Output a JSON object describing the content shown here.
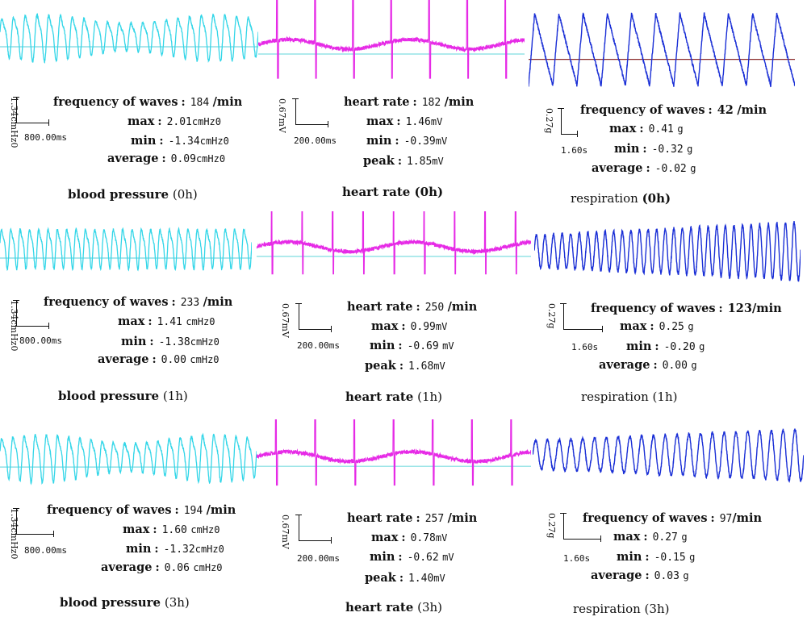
{
  "colors": {
    "bp": "#33d6e8",
    "hr": "#e62ae6",
    "resp": "#1a2fd6",
    "baseline_bp": "#77d8e0",
    "baseline_hr": "#7fdde0",
    "baseline_resp": "#8b2b2b"
  },
  "panels": [
    {
      "id": "bp0",
      "kind": "bp",
      "caption_bold": "blood pressure",
      "caption_time": "(0h)",
      "scale_v": "1.34cmHz0",
      "scale_h": "800.00ms",
      "chart_data": {
        "type": "line",
        "title": "blood pressure (0h)",
        "cycles": 22,
        "amplitude": 0.85,
        "trend": "modulated"
      },
      "stats": [
        {
          "label": "frequency of waves",
          "value": "184",
          "unit": "/min"
        },
        {
          "label": "max",
          "value": "2.01",
          "unit": "cmHz0"
        },
        {
          "label": "min",
          "value": "-1.34",
          "unit": "cmHz0"
        },
        {
          "label": "average",
          "value": "0.09",
          "unit": "cmHz0"
        }
      ]
    },
    {
      "id": "hr0",
      "kind": "hr",
      "caption_bold": "heart rate (0h)",
      "caption_time": "",
      "scale_v": "0.67mV",
      "scale_h": "200.00ms",
      "chart_data": {
        "type": "line",
        "title": "heart rate (0h)",
        "beats": 7,
        "trend": "wavy"
      },
      "stats": [
        {
          "label": "heart rate",
          "value": "182",
          "unit": "/min"
        },
        {
          "label": "max",
          "value": "1.46",
          "unit": "mV"
        },
        {
          "label": "min",
          "value": "-0.39",
          "unit": "mV"
        },
        {
          "label": "peak",
          "value": "1.85",
          "unit": "mV"
        }
      ]
    },
    {
      "id": "resp0",
      "kind": "resp",
      "caption_bold": "respiration",
      "caption_time": "(0h)",
      "scale_v": "0.27g",
      "scale_h": "1.60s",
      "chart_data": {
        "type": "line",
        "title": "respiration (0h)",
        "cycles": 11,
        "trend": "sawtooth"
      },
      "stats": [
        {
          "label": "frequency of waves",
          "value": "42",
          "unit": "/min"
        },
        {
          "label": "max",
          "value": "0.41",
          "unit": "g"
        },
        {
          "label": "min",
          "value": "-0.32",
          "unit": "g"
        },
        {
          "label": "average",
          "value": "-0.02",
          "unit": "g"
        }
      ]
    },
    {
      "id": "bp1",
      "kind": "bp",
      "caption_bold": "blood pressure",
      "caption_time": "(1h)",
      "scale_v": "1.34cmHz0",
      "scale_h": "800.00ms",
      "chart_data": {
        "type": "line",
        "title": "blood pressure (1h)",
        "cycles": 27,
        "amplitude": 0.9,
        "trend": "flat"
      },
      "stats": [
        {
          "label": "frequency of waves",
          "value": "233",
          "unit": "/min"
        },
        {
          "label": "max",
          "value": "1.41",
          "unit": "cmHz0"
        },
        {
          "label": "min",
          "value": "-1.38",
          "unit": "cmHz0"
        },
        {
          "label": "average",
          "value": "0.00",
          "unit": "cmHz0"
        }
      ]
    },
    {
      "id": "hr1",
      "kind": "hr",
      "caption_bold": "heart rate",
      "caption_time": "(1h)",
      "scale_v": "0.67mV",
      "scale_h": "200.00ms",
      "chart_data": {
        "type": "line",
        "title": "heart rate (1h)",
        "beats": 9,
        "trend": "wavy"
      },
      "stats": [
        {
          "label": "heart rate",
          "value": "250",
          "unit": "/min"
        },
        {
          "label": "max",
          "value": "0.99",
          "unit": "mV"
        },
        {
          "label": "min",
          "value": "-0.69",
          "unit": "mV"
        },
        {
          "label": "peak",
          "value": "1.68",
          "unit": "mV"
        }
      ]
    },
    {
      "id": "resp1",
      "kind": "resp",
      "caption_bold": "",
      "caption_time": "respiration (1h)",
      "scale_v": "0.27g",
      "scale_h": "1.60s",
      "chart_data": {
        "type": "line",
        "title": "respiration (1h)",
        "cycles": 31,
        "trend": "growing"
      },
      "stats": [
        {
          "label": "frequency of waves",
          "value": "123",
          "unit": "/min"
        },
        {
          "label": "max",
          "value": "0.25",
          "unit": "g"
        },
        {
          "label": "min",
          "value": "-0.20",
          "unit": "g"
        },
        {
          "label": "average",
          "value": "0.00",
          "unit": "g"
        }
      ]
    },
    {
      "id": "bp3",
      "kind": "bp",
      "caption_bold": "blood pressure",
      "caption_time": "(3h)",
      "scale_v": "1.34cmHz0",
      "scale_h": "800.00ms",
      "chart_data": {
        "type": "line",
        "title": "blood pressure (3h)",
        "cycles": 23,
        "amplitude": 0.85,
        "trend": "modulated"
      },
      "stats": [
        {
          "label": "frequency of waves",
          "value": "194",
          "unit": "/min"
        },
        {
          "label": "max",
          "value": "1.60",
          "unit": "cmHz0"
        },
        {
          "label": "min",
          "value": "-1.32",
          "unit": "cmHz0"
        },
        {
          "label": "average",
          "value": "0.06",
          "unit": "cmHz0"
        }
      ]
    },
    {
      "id": "hr3",
      "kind": "hr",
      "caption_bold": "heart rate",
      "caption_time": "(3h)",
      "scale_v": "0.67mV",
      "scale_h": "200.00ms",
      "chart_data": {
        "type": "line",
        "title": "heart rate (3h)",
        "beats": 7,
        "trend": "wavy"
      },
      "stats": [
        {
          "label": "heart rate",
          "value": "257",
          "unit": "/min"
        },
        {
          "label": "max",
          "value": "0.78",
          "unit": "mV"
        },
        {
          "label": "min",
          "value": "-0.62",
          "unit": "mV"
        },
        {
          "label": "peak",
          "value": "1.40",
          "unit": "mV"
        }
      ]
    },
    {
      "id": "resp3",
      "kind": "resp",
      "caption_bold": "",
      "caption_time": "respiration (3h)",
      "scale_v": "0.27g",
      "scale_h": "1.60s",
      "chart_data": {
        "type": "line",
        "title": "respiration (3h)",
        "cycles": 23,
        "trend": "growing"
      },
      "stats": [
        {
          "label": "frequency of waves",
          "value": "97",
          "unit": "/min"
        },
        {
          "label": "max",
          "value": "0.27",
          "unit": "g"
        },
        {
          "label": "min",
          "value": "-0.15",
          "unit": "g"
        },
        {
          "label": "average",
          "value": "0.03",
          "unit": "g"
        }
      ]
    }
  ]
}
